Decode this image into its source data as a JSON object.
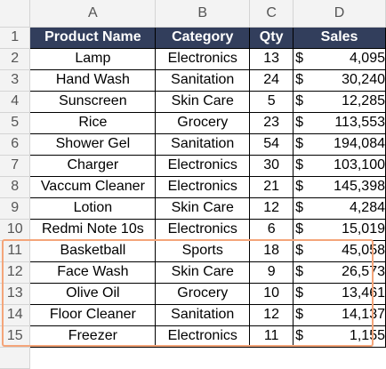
{
  "columns": [
    "A",
    "B",
    "C",
    "D"
  ],
  "header": {
    "row_num": "1",
    "product": "Product Name",
    "category": "Category",
    "qty": "Qty",
    "sales": "Sales"
  },
  "currency_symbol": "$",
  "rows": [
    {
      "num": "2",
      "product": "Lamp",
      "category": "Electronics",
      "qty": "13",
      "sales": "4,095"
    },
    {
      "num": "3",
      "product": "Hand Wash",
      "category": "Sanitation",
      "qty": "24",
      "sales": "30,240"
    },
    {
      "num": "4",
      "product": "Sunscreen",
      "category": "Skin Care",
      "qty": "5",
      "sales": "12,285"
    },
    {
      "num": "5",
      "product": "Rice",
      "category": "Grocery",
      "qty": "23",
      "sales": "113,553"
    },
    {
      "num": "6",
      "product": "Shower Gel",
      "category": "Sanitation",
      "qty": "54",
      "sales": "194,084"
    },
    {
      "num": "7",
      "product": "Charger",
      "category": "Electronics",
      "qty": "30",
      "sales": "103,100"
    },
    {
      "num": "8",
      "product": "Vaccum Cleaner",
      "category": "Electronics",
      "qty": "21",
      "sales": "145,398"
    },
    {
      "num": "9",
      "product": "Lotion",
      "category": "Skin Care",
      "qty": "12",
      "sales": "4,284"
    },
    {
      "num": "10",
      "product": "Redmi Note 10s",
      "category": "Electronics",
      "qty": "6",
      "sales": "15,019"
    },
    {
      "num": "11",
      "product": "Basketball",
      "category": "Sports",
      "qty": "18",
      "sales": "45,058"
    },
    {
      "num": "12",
      "product": "Face Wash",
      "category": "Skin Care",
      "qty": "9",
      "sales": "26,573"
    },
    {
      "num": "13",
      "product": "Olive Oil",
      "category": "Grocery",
      "qty": "10",
      "sales": "13,461"
    },
    {
      "num": "14",
      "product": "Floor Cleaner",
      "category": "Sanitation",
      "qty": "12",
      "sales": "14,137"
    },
    {
      "num": "15",
      "product": "Freezer",
      "category": "Electronics",
      "qty": "11",
      "sales": "1,155"
    }
  ],
  "highlight_color": "#f4a57a",
  "header_fill_color": "#323e5c"
}
